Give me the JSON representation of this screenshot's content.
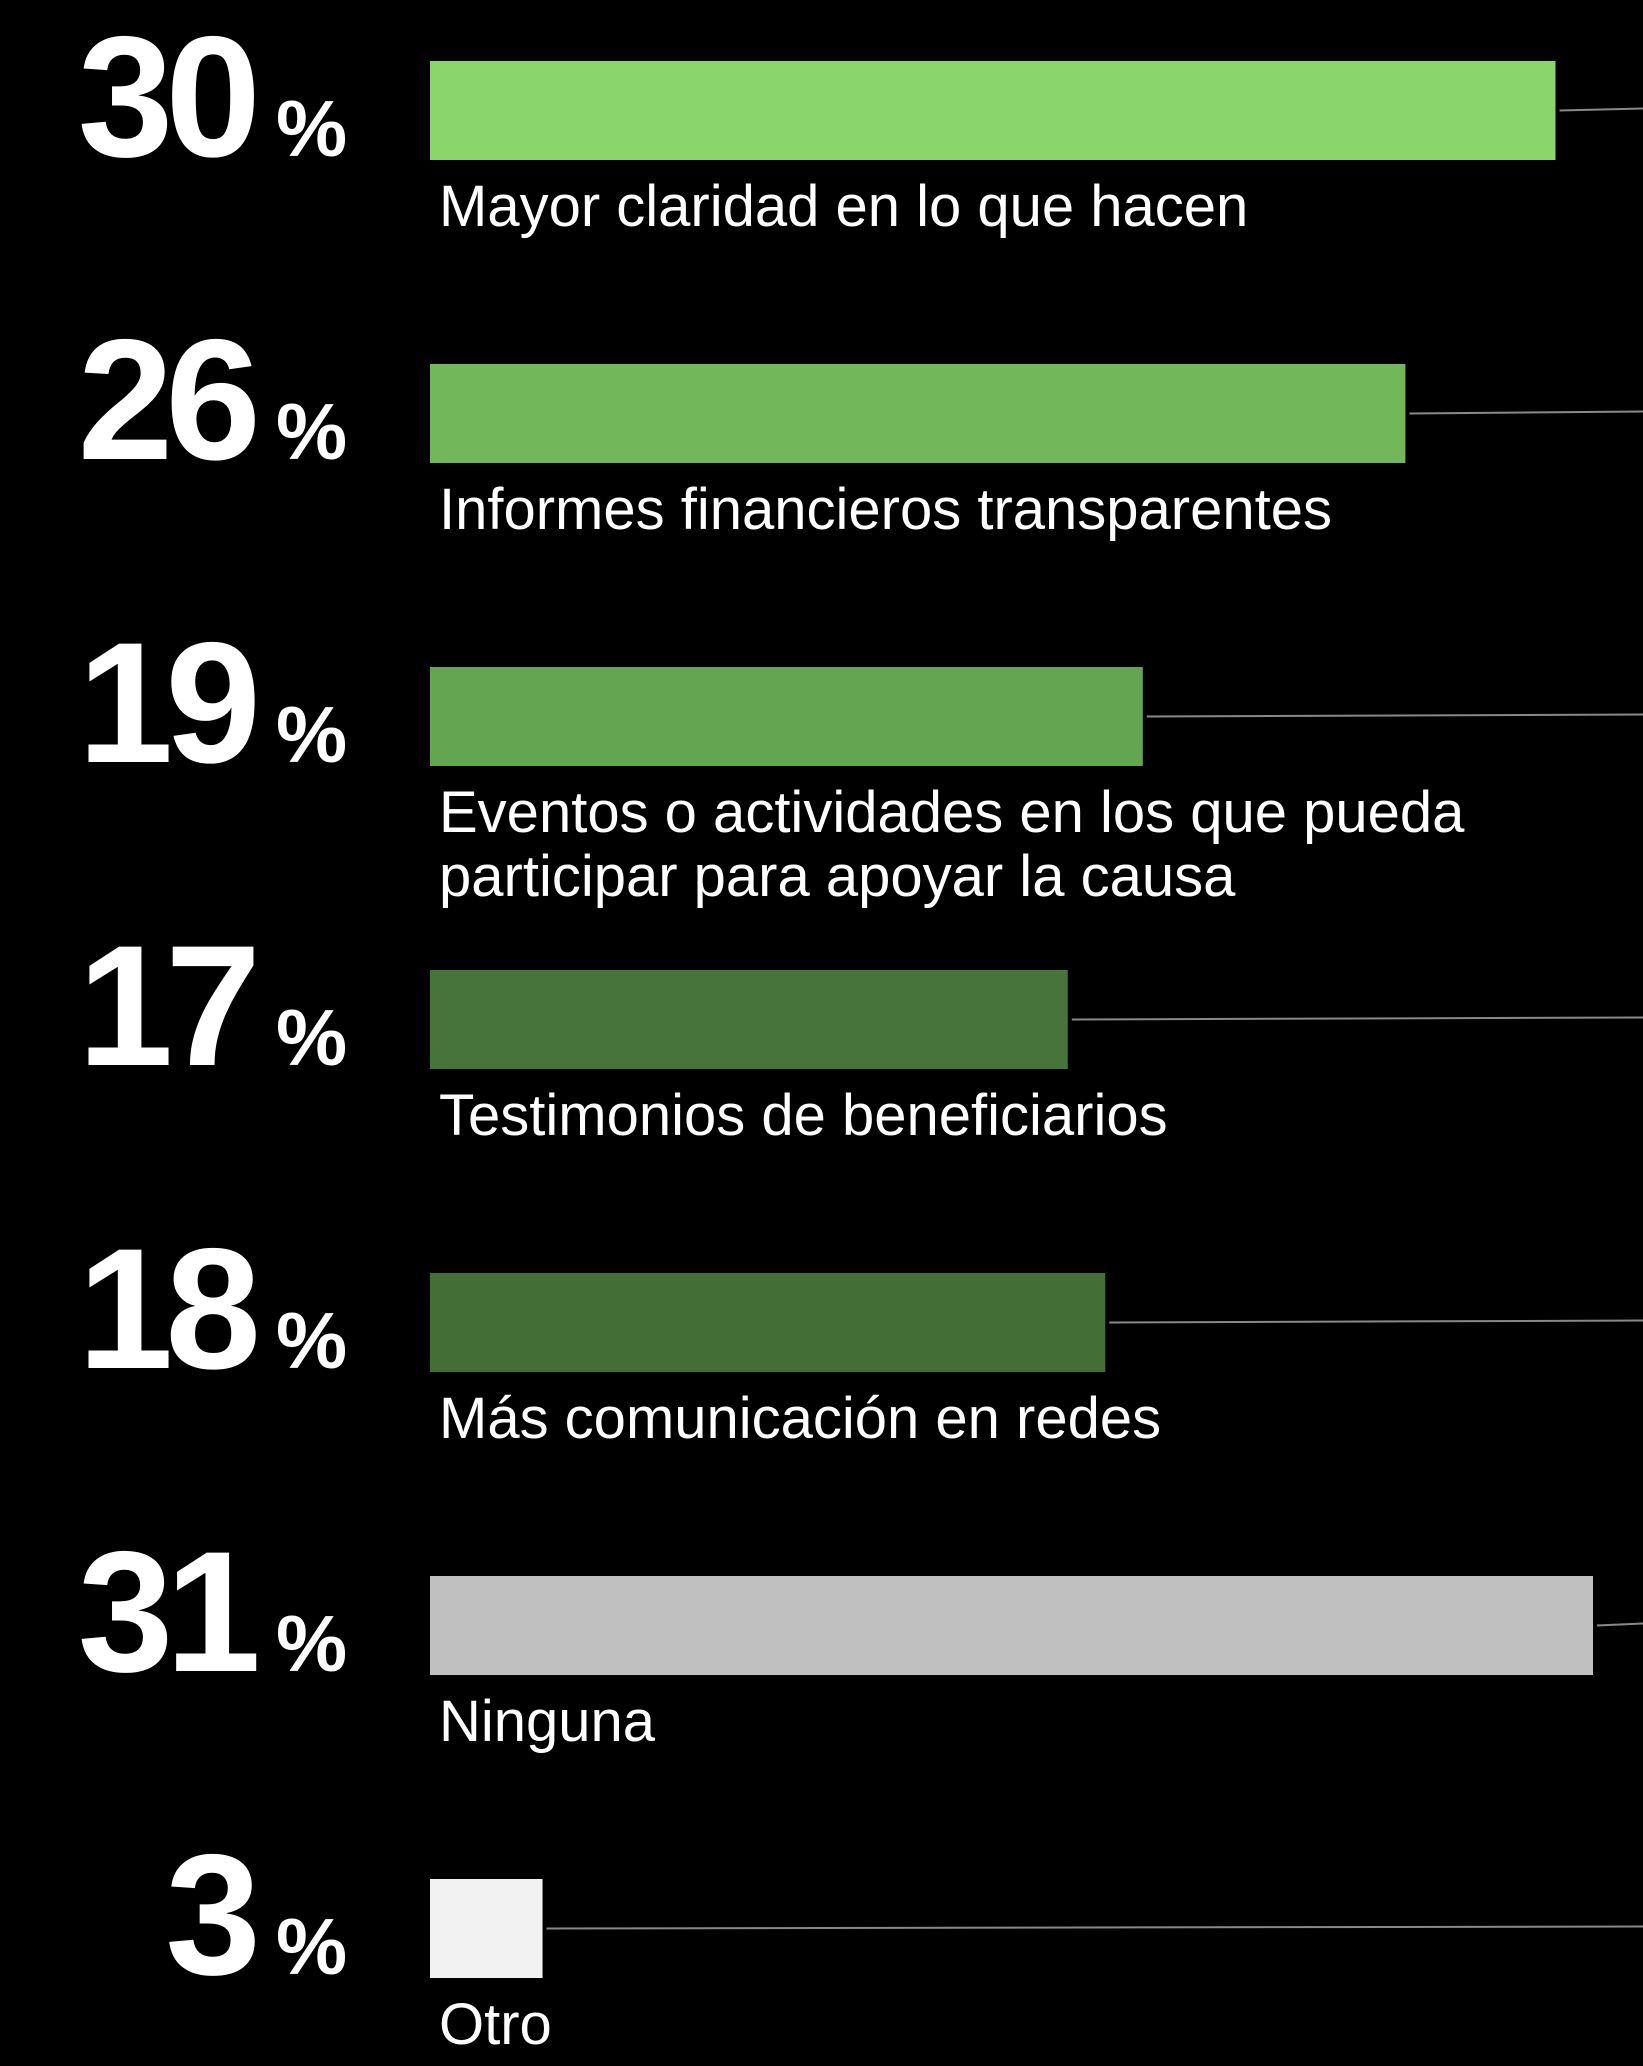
{
  "chart_data": {
    "type": "bar",
    "orientation": "horizontal",
    "categories": [
      "Mayor claridad en lo que hacen",
      "Informes financieros transparentes",
      "Eventos o actividades en los que pueda participar para apoyar la causa",
      "Testimonios de beneficiarios",
      "Más comunicación en redes",
      "Ninguna",
      "Otro"
    ],
    "values": [
      30,
      26,
      19,
      17,
      18,
      31,
      3
    ],
    "unit": "%",
    "colors": [
      "#8ad66b",
      "#72b85a",
      "#64a552",
      "#47743a",
      "#436f36",
      "#c0c0c0",
      "#f2f2f2"
    ],
    "xlim": [
      0,
      31
    ]
  }
}
